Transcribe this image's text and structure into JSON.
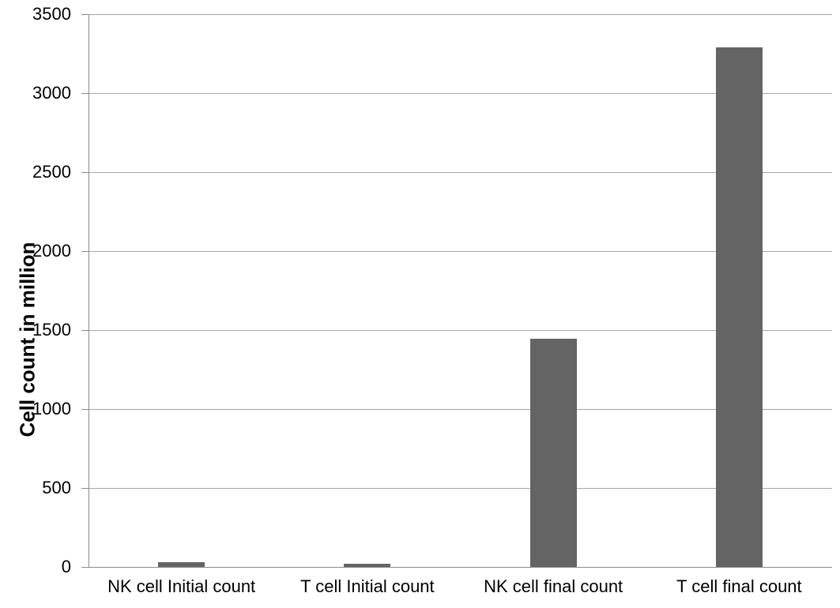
{
  "chart_data": {
    "type": "bar",
    "title": "",
    "categories": [
      "NK cell Initial count",
      "T cell Initial count",
      "NK cell final count",
      "T cell final count"
    ],
    "values": [
      30,
      20,
      1445,
      3290
    ],
    "xlabel": "",
    "ylabel": "Cell count in million",
    "ylim": [
      0,
      3500
    ],
    "yticks": [
      0,
      500,
      1000,
      1500,
      2000,
      2500,
      3000,
      3500
    ],
    "grid": "horizontal",
    "legend": "none",
    "colors": {
      "bar": "#646464",
      "gridline": "#a6a6a6",
      "axis": "#8c8c8c",
      "text": "#000000",
      "background": "#ffffff"
    }
  }
}
